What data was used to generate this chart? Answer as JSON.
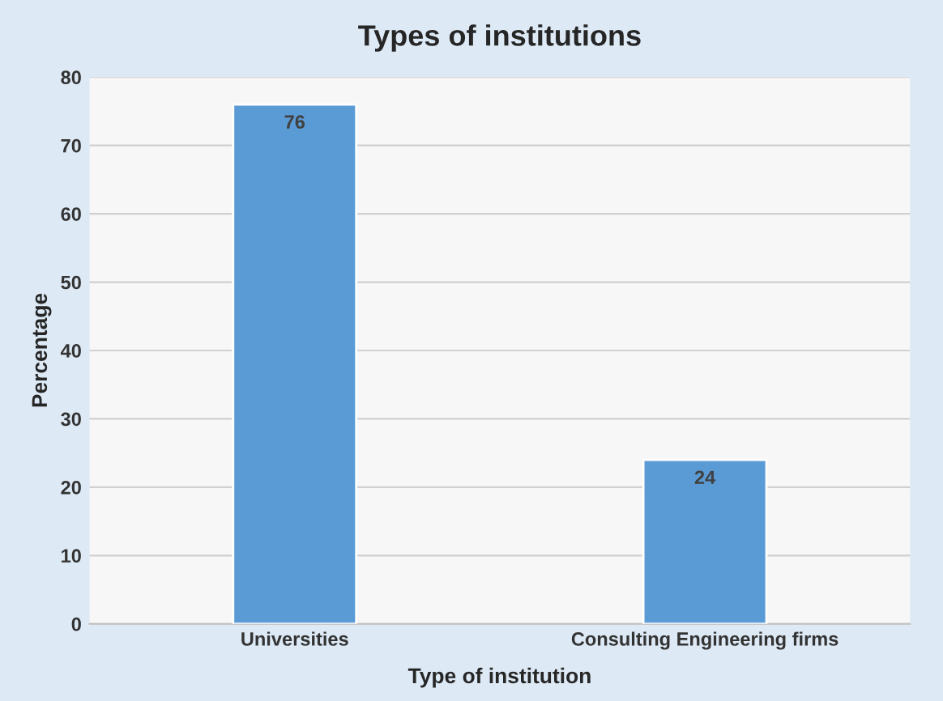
{
  "chart_data": {
    "type": "bar",
    "title": "Types of institutions",
    "xlabel": "Type of institution",
    "ylabel": "Percentage",
    "categories": [
      "Universities",
      "Consulting Engineering firms"
    ],
    "values": [
      76,
      24
    ],
    "color": "#5b9bd5",
    "ylim": [
      0,
      80
    ],
    "yticks": [
      0,
      10,
      20,
      30,
      40,
      50,
      60,
      70,
      80
    ],
    "grid": "y",
    "data_labels": true
  }
}
